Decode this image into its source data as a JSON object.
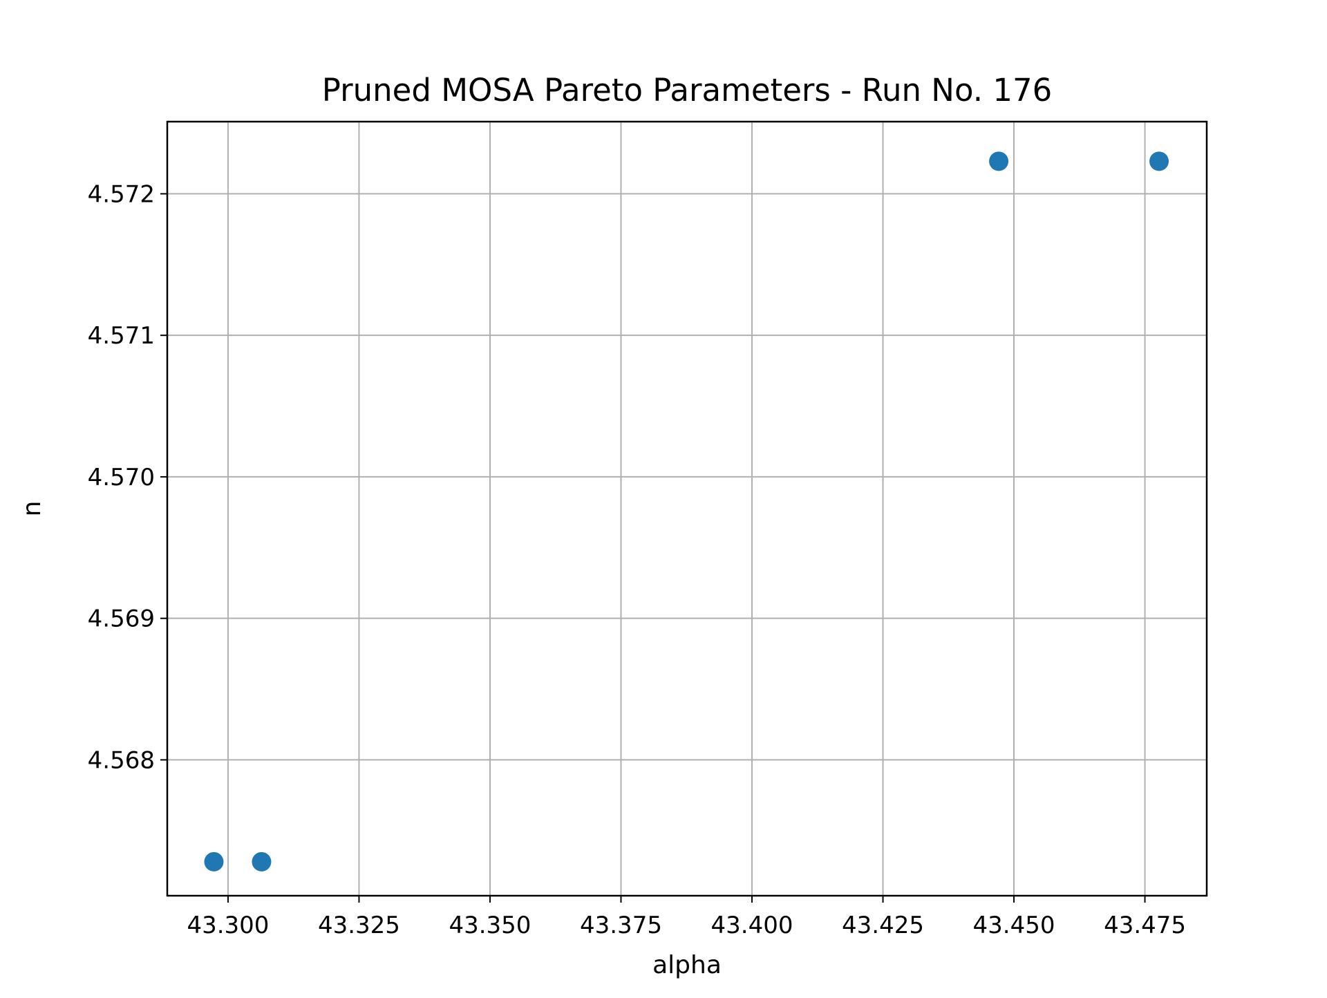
{
  "chart_data": {
    "type": "scatter",
    "title": "Pruned MOSA Pareto Parameters - Run No. 176",
    "xlabel": "alpha",
    "ylabel": "n",
    "xlim": [
      43.2884,
      43.4868
    ],
    "ylim": [
      4.56704,
      4.57251
    ],
    "xticks": [
      43.3,
      43.325,
      43.35,
      43.375,
      43.4,
      43.425,
      43.45,
      43.475
    ],
    "xtick_labels": [
      "43.300",
      "43.325",
      "43.350",
      "43.375",
      "43.400",
      "43.425",
      "43.450",
      "43.475"
    ],
    "yticks": [
      4.568,
      4.569,
      4.57,
      4.571,
      4.572
    ],
    "ytick_labels": [
      "4.568",
      "4.569",
      "4.570",
      "4.571",
      "4.572"
    ],
    "grid": true,
    "series": [
      {
        "color": "#1f77b4",
        "points": [
          {
            "x": 43.2973,
            "y": 4.56728
          },
          {
            "x": 43.3064,
            "y": 4.56728
          },
          {
            "x": 43.4471,
            "y": 4.57223
          },
          {
            "x": 43.4777,
            "y": 4.57223
          }
        ]
      }
    ]
  }
}
